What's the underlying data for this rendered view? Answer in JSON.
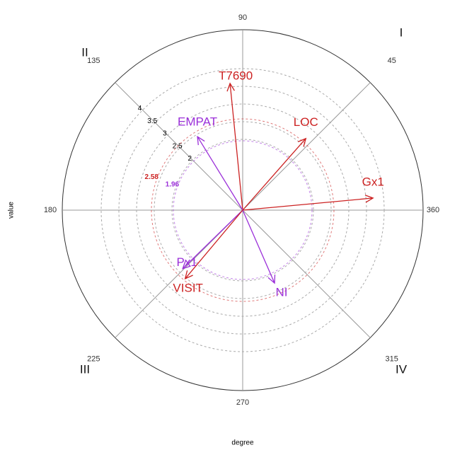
{
  "chart_data": {
    "type": "polar_vector",
    "xlabel": "degree",
    "ylabel": "value",
    "rlim": [
      0,
      5.1
    ],
    "rticks": [
      2,
      2.5,
      3,
      3.5,
      4
    ],
    "angle_ticks": [
      45,
      90,
      135,
      180,
      225,
      270,
      315,
      360
    ],
    "quadrants": [
      "I",
      "II",
      "III",
      "IV"
    ],
    "thresholds": [
      {
        "value": 1.96,
        "color": "#9b30d9"
      },
      {
        "value": 2.58,
        "color": "#cc2222"
      }
    ],
    "series": [
      {
        "name": "T7690",
        "color": "#cc2222",
        "angle": 95.7,
        "magnitude": 3.6
      },
      {
        "name": "LOC",
        "color": "#cc2222",
        "angle": 48.6,
        "magnitude": 2.7
      },
      {
        "name": "Gx1",
        "color": "#cc2222",
        "angle": 5.3,
        "magnitude": 3.7
      },
      {
        "name": "EMPAT",
        "color": "#9b30d9",
        "angle": 121.6,
        "magnitude": 2.44
      },
      {
        "name": "NI",
        "color": "#9b30d9",
        "angle": 293.6,
        "magnitude": 2.25
      },
      {
        "name": "Px1",
        "color": "#9b30d9",
        "angle": 224.3,
        "magnitude": 2.37
      },
      {
        "name": "VISIT",
        "color": "#cc2222",
        "angle": 230,
        "magnitude": 2.53
      }
    ]
  }
}
